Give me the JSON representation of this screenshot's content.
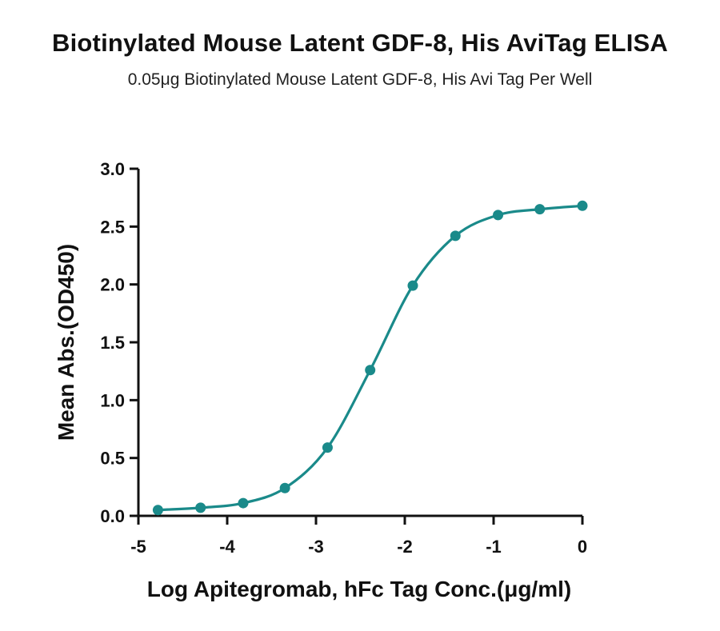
{
  "title": "Biotinylated Mouse Latent GDF-8, His AviTag ELISA",
  "subtitle": "0.05μg Biotinylated Mouse Latent GDF-8, His Avi Tag Per Well",
  "colors": {
    "series": "#1a8a8a",
    "axis": "#111111"
  },
  "chart_data": {
    "type": "scatter",
    "title": "Biotinylated Mouse Latent GDF-8, His AviTag ELISA",
    "subtitle": "0.05μg Biotinylated Mouse Latent GDF-8, His Avi Tag Per Well",
    "xlabel": "Log Apitegromab, hFc Tag Conc.(μg/ml)",
    "ylabel": "Mean Abs.(OD450)",
    "xlim": [
      -5,
      0
    ],
    "ylim": [
      0,
      3.0
    ],
    "x_ticks": [
      "-5",
      "-4",
      "-3",
      "-2",
      "-1",
      "0"
    ],
    "y_ticks": [
      "0.0",
      "0.5",
      "1.0",
      "1.5",
      "2.0",
      "2.5",
      "3.0"
    ],
    "grid": false,
    "legend": "none",
    "fit": "sigmoidal four-parameter curve",
    "series": [
      {
        "x": [
          -4.78,
          -4.3,
          -3.82,
          -3.35,
          -2.87,
          -2.39,
          -1.91,
          -1.43,
          -0.95,
          -0.48,
          0.0
        ],
        "y": [
          0.05,
          0.07,
          0.11,
          0.24,
          0.59,
          1.26,
          1.99,
          2.42,
          2.6,
          2.65,
          2.68
        ]
      }
    ]
  }
}
